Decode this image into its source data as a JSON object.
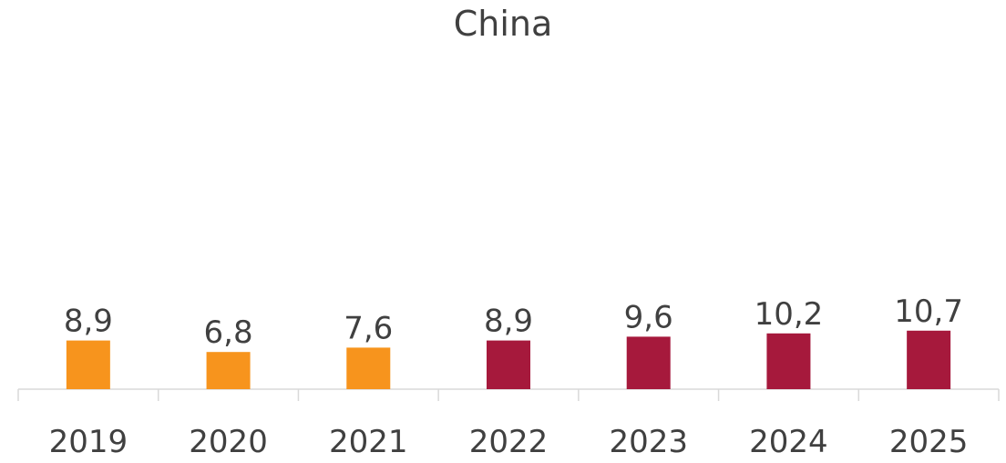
{
  "chart_data": {
    "type": "bar",
    "title": "China",
    "xlabel": "",
    "ylabel": "",
    "categories": [
      "2019",
      "2020",
      "2021",
      "2022",
      "2023",
      "2024",
      "2025"
    ],
    "values": [
      8.9,
      6.8,
      7.6,
      8.9,
      9.6,
      10.2,
      10.7
    ],
    "value_labels": [
      "8,9",
      "6,8",
      "7,6",
      "8,9",
      "9,6",
      "10,2",
      "10,7"
    ],
    "bar_colors": [
      "#F7941D",
      "#F7941D",
      "#F7941D",
      "#A6193C",
      "#A6193C",
      "#A6193C",
      "#A6193C"
    ],
    "ylim": [
      0,
      70
    ],
    "grid": false,
    "legend": "none"
  }
}
